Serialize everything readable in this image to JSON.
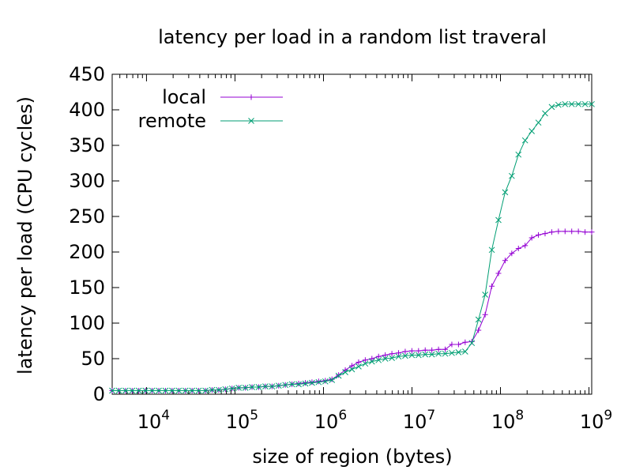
{
  "chart_data": {
    "type": "line",
    "title": "latency per load in a random list traveral",
    "xlabel": "size of region (bytes)",
    "ylabel": "latency per load (CPU cycles)",
    "x_scale": "log",
    "xlim": [
      4096,
      1073741824
    ],
    "ylim": [
      0,
      450
    ],
    "y_ticks": [
      0,
      50,
      100,
      150,
      200,
      250,
      300,
      350,
      400,
      450
    ],
    "x_ticks": [
      {
        "value": 10000,
        "base": "10",
        "exp": "4"
      },
      {
        "value": 100000,
        "base": "10",
        "exp": "5"
      },
      {
        "value": 1000000,
        "base": "10",
        "exp": "6"
      },
      {
        "value": 10000000,
        "base": "10",
        "exp": "7"
      },
      {
        "value": 100000000,
        "base": "10",
        "exp": "8"
      },
      {
        "value": 1000000000,
        "base": "10",
        "exp": "9"
      }
    ],
    "grid": false,
    "legend_position": "top-left",
    "series": [
      {
        "name": "local",
        "color": "#9400d3",
        "marker": "plus",
        "points": [
          [
            4096,
            5
          ],
          [
            4871,
            5
          ],
          [
            5793,
            5
          ],
          [
            6889,
            5
          ],
          [
            8192,
            5
          ],
          [
            9742,
            5
          ],
          [
            11585,
            5
          ],
          [
            13777,
            5
          ],
          [
            16384,
            5
          ],
          [
            19484,
            5
          ],
          [
            23170,
            5
          ],
          [
            27554,
            5
          ],
          [
            32768,
            5
          ],
          [
            38968,
            5
          ],
          [
            46341,
            5
          ],
          [
            55109,
            6
          ],
          [
            65536,
            6
          ],
          [
            77936,
            7
          ],
          [
            92682,
            8
          ],
          [
            110218,
            9
          ],
          [
            131072,
            9
          ],
          [
            155872,
            10
          ],
          [
            185364,
            10
          ],
          [
            220436,
            11
          ],
          [
            262144,
            11
          ],
          [
            311744,
            12
          ],
          [
            370728,
            13
          ],
          [
            440872,
            14
          ],
          [
            524288,
            15
          ],
          [
            623487,
            16
          ],
          [
            741455,
            17
          ],
          [
            881744,
            18
          ],
          [
            1048576,
            19
          ],
          [
            1246974,
            21
          ],
          [
            1482910,
            27
          ],
          [
            1763488,
            34
          ],
          [
            2097152,
            40
          ],
          [
            2493948,
            45
          ],
          [
            2965821,
            48
          ],
          [
            3526975,
            50
          ],
          [
            4194304,
            53
          ],
          [
            4987896,
            55
          ],
          [
            5931642,
            57
          ],
          [
            7053950,
            58
          ],
          [
            8388608,
            60
          ],
          [
            9975792,
            61
          ],
          [
            11863283,
            61
          ],
          [
            14107900,
            62
          ],
          [
            16777216,
            62
          ],
          [
            19951584,
            63
          ],
          [
            23726566,
            63
          ],
          [
            28215800,
            70
          ],
          [
            33554432,
            70
          ],
          [
            39903168,
            73
          ],
          [
            47453133,
            74
          ],
          [
            56431600,
            90
          ],
          [
            67108864,
            112
          ],
          [
            79806336,
            152
          ],
          [
            94906266,
            170
          ],
          [
            112863200,
            188
          ],
          [
            134217728,
            198
          ],
          [
            159612672,
            205
          ],
          [
            189812531,
            209
          ],
          [
            225726400,
            220
          ],
          [
            268435456,
            224
          ],
          [
            319225344,
            226
          ],
          [
            379625062,
            228
          ],
          [
            451452800,
            229
          ],
          [
            536870912,
            229
          ],
          [
            638450688,
            229
          ],
          [
            759250125,
            229
          ],
          [
            902905600,
            228
          ],
          [
            1073741824,
            228
          ]
        ]
      },
      {
        "name": "remote",
        "color": "#009e73",
        "marker": "cross",
        "points": [
          [
            4096,
            5
          ],
          [
            4871,
            5
          ],
          [
            5793,
            5
          ],
          [
            6889,
            5
          ],
          [
            8192,
            5
          ],
          [
            9742,
            5
          ],
          [
            11585,
            5
          ],
          [
            13777,
            5
          ],
          [
            16384,
            5
          ],
          [
            19484,
            5
          ],
          [
            23170,
            5
          ],
          [
            27554,
            5
          ],
          [
            32768,
            5
          ],
          [
            38968,
            5
          ],
          [
            46341,
            5
          ],
          [
            55109,
            6
          ],
          [
            65536,
            6
          ],
          [
            77936,
            7
          ],
          [
            92682,
            8
          ],
          [
            110218,
            9
          ],
          [
            131072,
            9
          ],
          [
            155872,
            10
          ],
          [
            185364,
            10
          ],
          [
            220436,
            11
          ],
          [
            262144,
            11
          ],
          [
            311744,
            12
          ],
          [
            370728,
            13
          ],
          [
            440872,
            14
          ],
          [
            524288,
            14
          ],
          [
            623487,
            15
          ],
          [
            741455,
            16
          ],
          [
            881744,
            17
          ],
          [
            1048576,
            18
          ],
          [
            1246974,
            20
          ],
          [
            1482910,
            26
          ],
          [
            1763488,
            31
          ],
          [
            2097152,
            35
          ],
          [
            2493948,
            39
          ],
          [
            2965821,
            43
          ],
          [
            3526975,
            46
          ],
          [
            4194304,
            48
          ],
          [
            4987896,
            50
          ],
          [
            5931642,
            51
          ],
          [
            7053950,
            53
          ],
          [
            8388608,
            54
          ],
          [
            9975792,
            55
          ],
          [
            11863283,
            55
          ],
          [
            14107900,
            56
          ],
          [
            16777216,
            56
          ],
          [
            19951584,
            57
          ],
          [
            23726566,
            57
          ],
          [
            28215800,
            58
          ],
          [
            33554432,
            59
          ],
          [
            39903168,
            60
          ],
          [
            47453133,
            72
          ],
          [
            56431600,
            105
          ],
          [
            67108864,
            140
          ],
          [
            79806336,
            203
          ],
          [
            94906266,
            245
          ],
          [
            112863200,
            284
          ],
          [
            134217728,
            307
          ],
          [
            159612672,
            337
          ],
          [
            189812531,
            357
          ],
          [
            225726400,
            370
          ],
          [
            268435456,
            382
          ],
          [
            319225344,
            395
          ],
          [
            379625062,
            404
          ],
          [
            451452800,
            407
          ],
          [
            536870912,
            408
          ],
          [
            638450688,
            408
          ],
          [
            759250125,
            408
          ],
          [
            902905600,
            408
          ],
          [
            1073741824,
            408
          ]
        ]
      }
    ]
  }
}
